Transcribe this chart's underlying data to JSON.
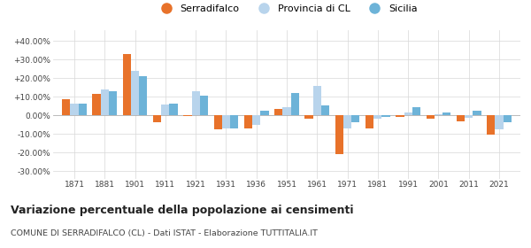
{
  "years": [
    1871,
    1881,
    1901,
    1911,
    1921,
    1931,
    1936,
    1951,
    1961,
    1971,
    1981,
    1991,
    2001,
    2011,
    2021
  ],
  "serradifalco": [
    8.5,
    11.5,
    33.0,
    -3.5,
    -0.5,
    -7.5,
    -7.0,
    3.5,
    -2.0,
    -21.0,
    -7.0,
    -1.0,
    -2.0,
    -3.0,
    -10.5
  ],
  "provincia_cl": [
    6.5,
    14.0,
    24.0,
    6.0,
    13.0,
    -7.0,
    -5.0,
    4.5,
    16.0,
    -7.0,
    -2.0,
    1.5,
    0.5,
    -1.5,
    -7.5
  ],
  "sicilia": [
    6.5,
    13.0,
    21.0,
    6.5,
    10.5,
    -7.0,
    2.5,
    12.0,
    5.5,
    -3.5,
    -1.0,
    4.5,
    1.5,
    2.5,
    -3.5
  ],
  "color_serra": "#e8722a",
  "color_prov": "#b8d4ec",
  "color_sic": "#6db3d8",
  "yticks": [
    -30,
    -20,
    -10,
    0,
    10,
    20,
    30,
    40
  ],
  "ytick_labels": [
    "-30.00%",
    "-20.00%",
    "-10.00%",
    "0.00%",
    "+10.00%",
    "+20.00%",
    "+30.00%",
    "+40.00%"
  ],
  "title": "Variazione percentuale della popolazione ai censimenti",
  "subtitle": "COMUNE DI SERRADIFALCO (CL) - Dati ISTAT - Elaborazione TUTTITALIA.IT",
  "legend_labels": [
    "Serradifalco",
    "Provincia di CL",
    "Sicilia"
  ],
  "bar_width": 0.27,
  "ylim": [
    -34,
    46
  ],
  "background_color": "#ffffff",
  "grid_color": "#d8d8d8"
}
